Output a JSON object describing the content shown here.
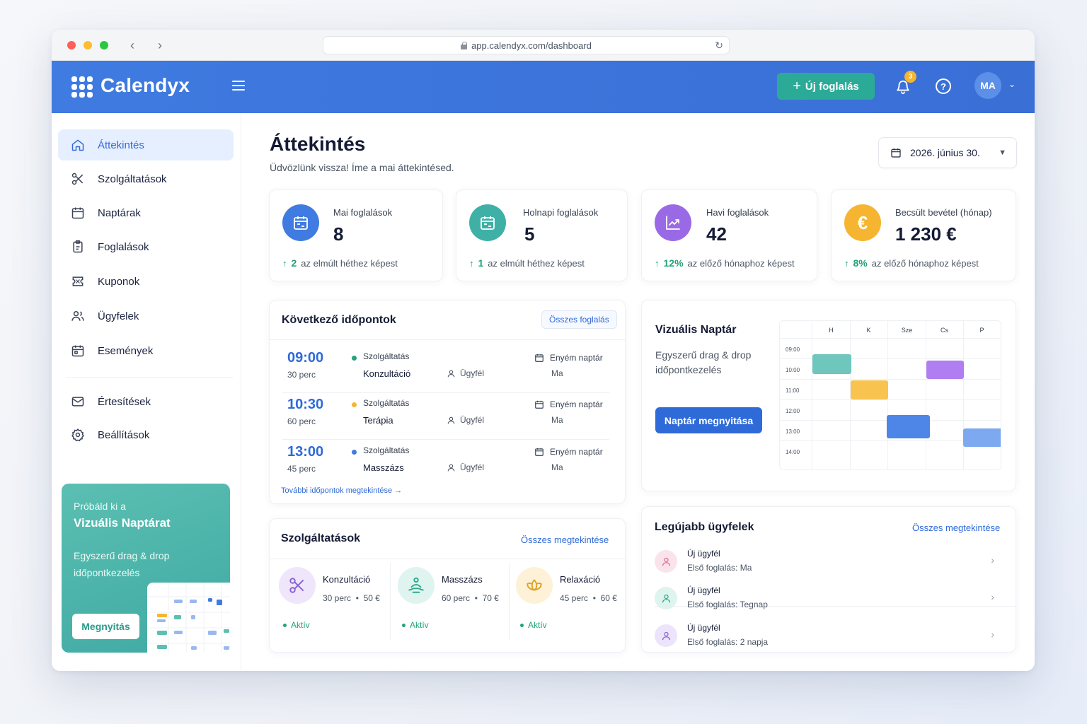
{
  "browser": {
    "url": "app.calendyx.com/dashboard"
  },
  "header": {
    "brand": "Calendyx",
    "new_booking_label": "Új foglalás",
    "notification_count": "3",
    "avatar_initials": "MA"
  },
  "sidebar": {
    "items": [
      {
        "label": "Áttekintés",
        "icon": "home-icon",
        "active": true
      },
      {
        "label": "Szolgáltatások",
        "icon": "scissors-icon"
      },
      {
        "label": "Naptárak",
        "icon": "calendar-icon"
      },
      {
        "label": "Foglalások",
        "icon": "clipboard-icon"
      },
      {
        "label": "Kuponok",
        "icon": "coupon-icon"
      },
      {
        "label": "Ügyfelek",
        "icon": "users-icon"
      },
      {
        "label": "Események",
        "icon": "calendar-event-icon"
      }
    ],
    "bottom_items": [
      {
        "label": "Értesítések",
        "icon": "mail-icon"
      },
      {
        "label": "Beállítások",
        "icon": "gear-icon"
      }
    ],
    "promo": {
      "line1": "Próbáld ki a",
      "title": "Vizuális Naptárat",
      "desc": "Egyszerű drag & drop időpontkezelés",
      "button": "Megnyitás"
    }
  },
  "main": {
    "title": "Áttekintés",
    "subtitle": "Üdvözlünk vissza! Íme a mai áttekintésed.",
    "date": "2026. június 30.",
    "stats": [
      {
        "label": "Mai foglalások",
        "value": "8",
        "delta": "2",
        "compare": "az elmúlt héthez képest",
        "color": "#3f7be0",
        "icon": "calendar-icon"
      },
      {
        "label": "Holnapi foglalások",
        "value": "5",
        "delta": "1",
        "compare": "az elmúlt héthez képest",
        "color": "#3fb0a6",
        "icon": "calendar-icon"
      },
      {
        "label": "Havi foglalások",
        "value": "42",
        "delta": "12%",
        "compare": "az előző hónaphoz képest",
        "color": "#9a6ae6",
        "icon": "chart-icon"
      },
      {
        "label": "Becsült bevétel (hónap)",
        "value": "1 230 €",
        "delta": "8%",
        "compare": "az előző hónaphoz képest",
        "color": "#f6b530",
        "icon": "euro-icon"
      }
    ],
    "upcoming": {
      "title": "Következő időpontok",
      "all_link": "Összes foglalás",
      "more_link": "További időpontok megtekintése",
      "items": [
        {
          "time": "09:00",
          "duration": "30 perc",
          "service_label": "Szolgáltatás",
          "service": "Konzultáció",
          "client": "Ügyfél",
          "calendar": "Enyém naptár",
          "day": "Ma",
          "dot": "#22a37a"
        },
        {
          "time": "10:30",
          "duration": "60 perc",
          "service_label": "Szolgáltatás",
          "service": "Terápia",
          "client": "Ügyfél",
          "calendar": "Enyém naptár",
          "day": "Ma",
          "dot": "#f6b530"
        },
        {
          "time": "13:00",
          "duration": "45 perc",
          "service_label": "Szolgáltatás",
          "service": "Masszázs",
          "client": "Ügyfél",
          "calendar": "Enyém naptár",
          "day": "Ma",
          "dot": "#3f7be0"
        }
      ]
    },
    "services": {
      "title": "Szolgáltatások",
      "all_link": "Összes megtekintése",
      "items": [
        {
          "name": "Konzultáció",
          "duration": "30 perc",
          "price": "50 €",
          "status": "Aktív",
          "icon": "scissors-icon"
        },
        {
          "name": "Masszázs",
          "duration": "60 perc",
          "price": "70 €",
          "status": "Aktív",
          "icon": "massage-icon"
        },
        {
          "name": "Relaxáció",
          "duration": "45 perc",
          "price": "60 €",
          "status": "Aktív",
          "icon": "lotus-icon"
        }
      ]
    },
    "visual": {
      "title": "Vizuális Naptár",
      "desc": "Egyszerű drag & drop időpontkezelés",
      "button": "Naptár megnyitása",
      "days": [
        "H",
        "K",
        "Sze",
        "Cs",
        "P"
      ],
      "times": [
        "09:00",
        "10:00",
        "11:00",
        "12:00",
        "13:00",
        "14:00"
      ]
    },
    "clients": {
      "title": "Legújabb ügyfelek",
      "all_link": "Összes megtekintése",
      "first_label": "Első foglalás:",
      "items": [
        {
          "name": "Új ügyfél",
          "first": "Ma",
          "color": "#fbe3ec",
          "icon_color": "#e26a96"
        },
        {
          "name": "Új ügyfél",
          "first": "Tegnap",
          "color": "#dff4ef",
          "icon_color": "#2fa98f"
        },
        {
          "name": "Új ügyfél",
          "first": "2 napja",
          "color": "#ece4fb",
          "icon_color": "#8a62d8"
        }
      ]
    }
  }
}
